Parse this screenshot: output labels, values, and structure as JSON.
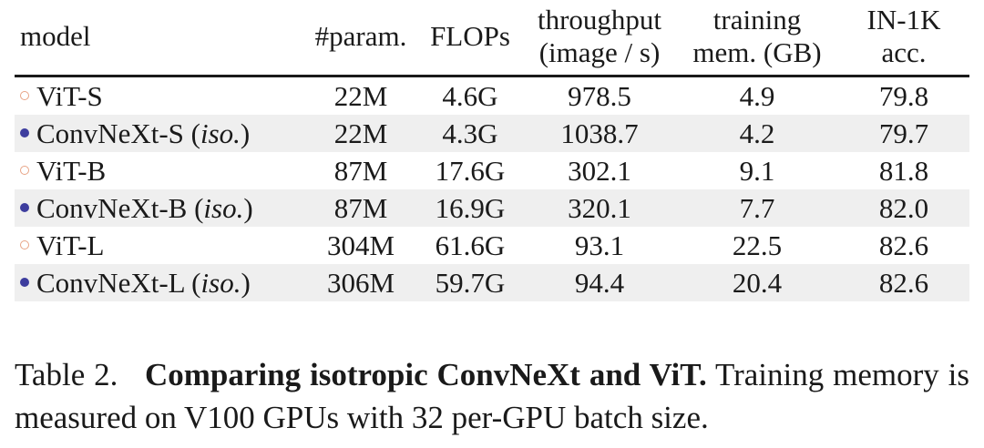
{
  "table": {
    "headers": {
      "model": "model",
      "param": "#param.",
      "flops": "FLOPs",
      "throughput_1": "throughput",
      "throughput_2": "(image / s)",
      "training_1": "training",
      "training_2": "mem. (GB)",
      "acc_1": "IN-1K",
      "acc_2": "acc."
    },
    "rows": [
      {
        "marker": "open-circle-icon",
        "name": "ViT-S",
        "suffix": "",
        "param": "22M",
        "flops": "4.6G",
        "throughput": "978.5",
        "mem": "4.9",
        "acc": "79.8"
      },
      {
        "marker": "filled-circle-icon",
        "name": "ConvNeXt-S (",
        "suffix": "iso.",
        "close": ")",
        "param": "22M",
        "flops": "4.3G",
        "throughput": "1038.7",
        "mem": "4.2",
        "acc": "79.7"
      },
      {
        "marker": "open-circle-icon",
        "name": "ViT-B",
        "suffix": "",
        "param": "87M",
        "flops": "17.6G",
        "throughput": "302.1",
        "mem": "9.1",
        "acc": "81.8"
      },
      {
        "marker": "filled-circle-icon",
        "name": "ConvNeXt-B (",
        "suffix": "iso.",
        "close": ")",
        "param": "87M",
        "flops": "16.9G",
        "throughput": "320.1",
        "mem": "7.7",
        "acc": "82.0"
      },
      {
        "marker": "open-circle-icon",
        "name": "ViT-L",
        "suffix": "",
        "param": "304M",
        "flops": "61.6G",
        "throughput": "93.1",
        "mem": "22.5",
        "acc": "82.6"
      },
      {
        "marker": "filled-circle-icon",
        "name": "ConvNeXt-L (",
        "suffix": "iso.",
        "close": ")",
        "param": "306M",
        "flops": "59.7G",
        "throughput": "94.4",
        "mem": "20.4",
        "acc": "82.6"
      }
    ]
  },
  "caption": {
    "label": "Table 2.",
    "title": "Comparing isotropic ConvNeXt and ViT.",
    "body": "Training memory is measured on V100 GPUs with 32 per-GPU batch size."
  },
  "colors": {
    "open_marker": "#e8a486",
    "filled_marker": "#3d3d9e",
    "row_shade": "#efefef"
  }
}
